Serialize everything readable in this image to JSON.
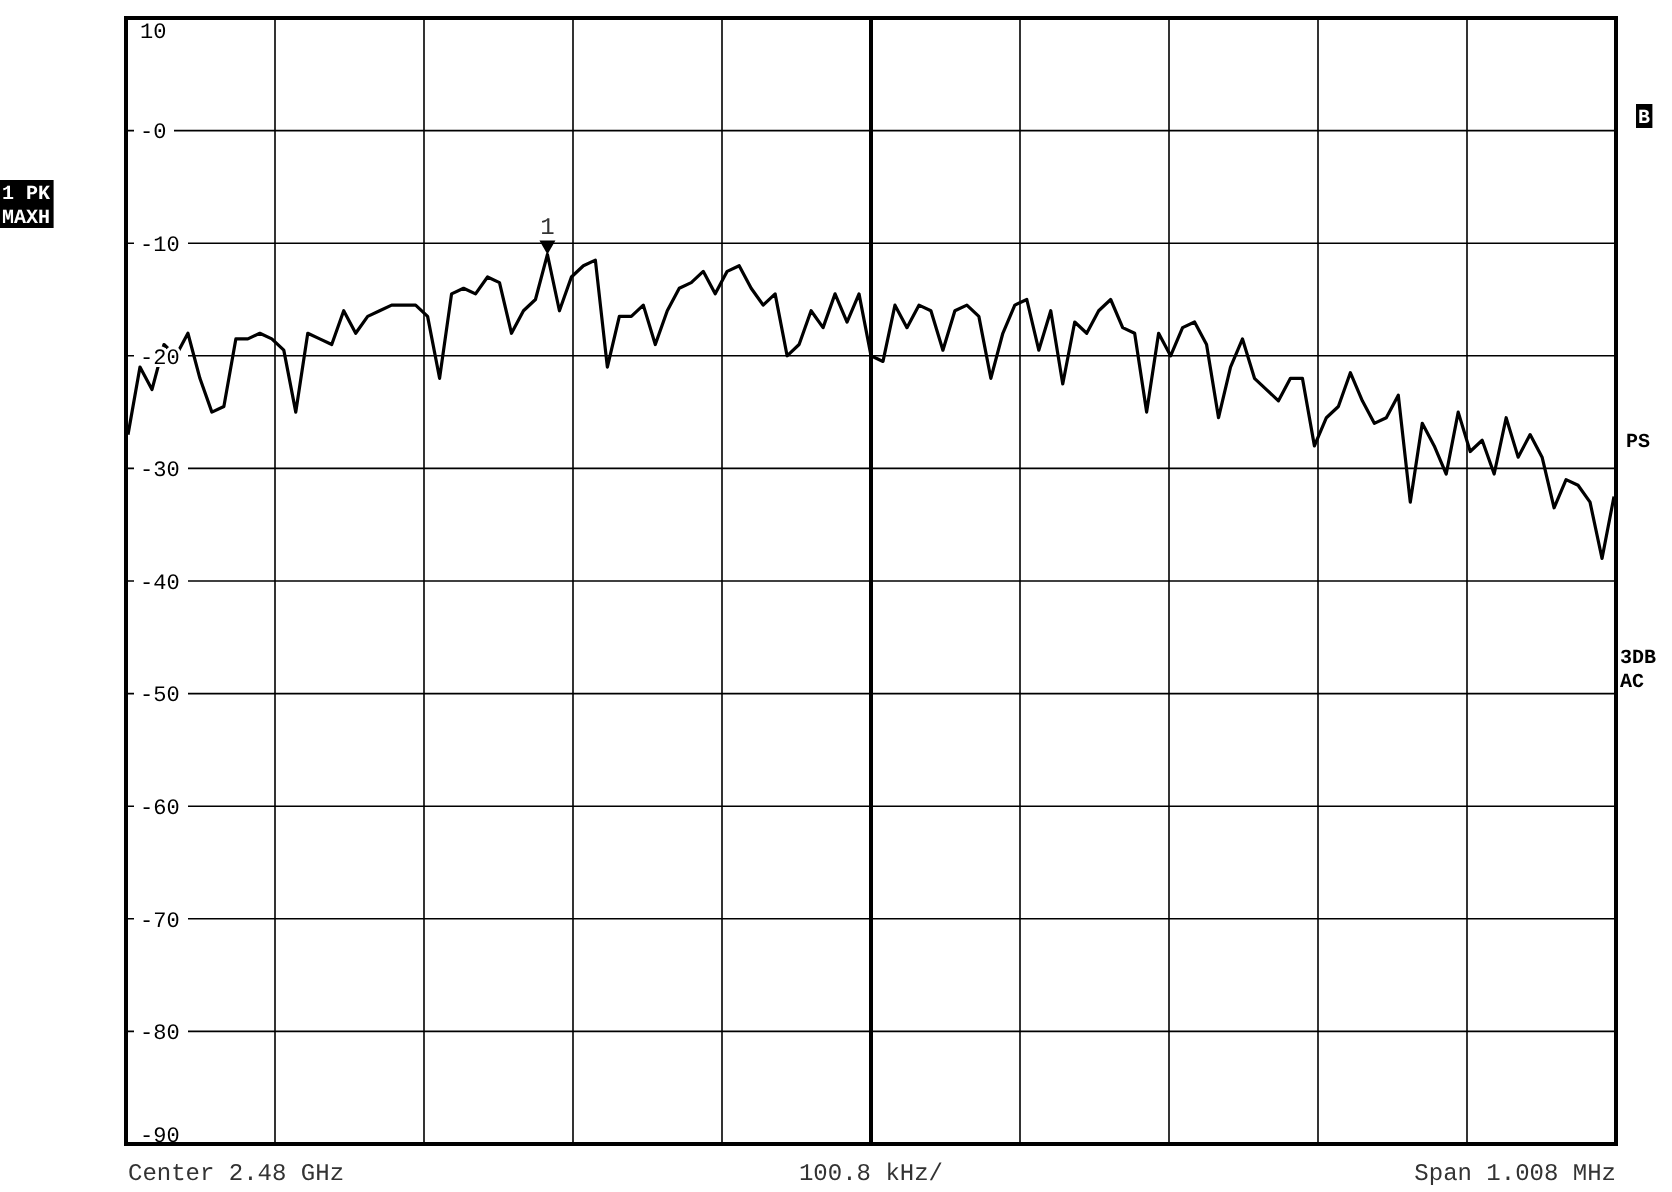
{
  "chart_data": {
    "type": "line",
    "categories": [
      null,
      null,
      null,
      null,
      null,
      null,
      null,
      null,
      null,
      null,
      null,
      null,
      null,
      null,
      null,
      null,
      null,
      null,
      null,
      null,
      null,
      null,
      null,
      null,
      null,
      null,
      null,
      null,
      null,
      null,
      null,
      null,
      null,
      null,
      null,
      null,
      null,
      null,
      null,
      null,
      null,
      null,
      null,
      null,
      null,
      null,
      null,
      null,
      null,
      null,
      null,
      null,
      null,
      null,
      null,
      null,
      null,
      null,
      null,
      null,
      null,
      null,
      null,
      null,
      null,
      null,
      null,
      null,
      null,
      null,
      null,
      null,
      null,
      null,
      null,
      null,
      null,
      null,
      null,
      null,
      null,
      null,
      null,
      null,
      null,
      null,
      null,
      null,
      null,
      null,
      null,
      null,
      null,
      null,
      null,
      null,
      null,
      null,
      null,
      null,
      null,
      null,
      null,
      null,
      null,
      null,
      null,
      null,
      null,
      null,
      null,
      null,
      null,
      null,
      null,
      null,
      null,
      null,
      null,
      null,
      null,
      null,
      null,
      null,
      null
    ],
    "series": [
      {
        "color": "#000000",
        "values": [
          -27,
          -21,
          -23,
          -19,
          -20,
          -18,
          -22,
          -25,
          -24.5,
          -18.5,
          -18.5,
          -18,
          -18.5,
          -19.5,
          -25,
          -18,
          -18.5,
          -19,
          -16,
          -18,
          -16.5,
          -16,
          -15.5,
          -15.5,
          -15.5,
          -16.5,
          -22,
          -14.5,
          -14,
          -14.5,
          -13,
          -13.5,
          -18,
          -16,
          -15,
          -11,
          -16,
          -13,
          -12,
          -11.5,
          -21,
          -16.5,
          -16.5,
          -15.5,
          -19,
          -16,
          -14,
          -13.5,
          -12.5,
          -14.5,
          -12.5,
          -12,
          -14,
          -15.5,
          -14.5,
          -20,
          -19,
          -16,
          -17.5,
          -14.5,
          -17,
          -14.5,
          -20,
          -20.5,
          -15.5,
          -17.5,
          -15.5,
          -16,
          -19.5,
          -16,
          -15.5,
          -16.5,
          -22,
          -18,
          -15.5,
          -15,
          -19.5,
          -16,
          -22.5,
          -17,
          -18,
          -16,
          -15,
          -17.5,
          -18,
          -25,
          -18,
          -20,
          -17.5,
          -17,
          -19,
          -25.5,
          -21,
          -18.5,
          -22,
          -23,
          -24,
          -22,
          -22,
          -28,
          -25.5,
          -24.5,
          -21.5,
          -24,
          -26,
          -25.5,
          -23.5,
          -33,
          -26,
          -28,
          -30.5,
          -25,
          -28.5,
          -27.5,
          -30.5,
          -25.5,
          -29,
          -27,
          -29,
          -33.5,
          -31,
          -31.5,
          -33,
          -38,
          -32.5
        ]
      }
    ],
    "ylim": [
      -90,
      10
    ],
    "yticks": [
      10,
      {
        "value": 0,
        "label": "-0"
      },
      -10,
      -20,
      -30,
      -40,
      -50,
      -60,
      -70,
      -80,
      -90
    ],
    "grid": true,
    "marker": "none",
    "line_style": "solid",
    "annotations": [
      "Center 2.48 GHz",
      "100.8 kHz/",
      "Span 1.008 MHz",
      "1 PK",
      "MAXH",
      "B",
      "PS",
      "3DB",
      "AC",
      {
        "text": "1",
        "y": -11
      }
    ]
  }
}
